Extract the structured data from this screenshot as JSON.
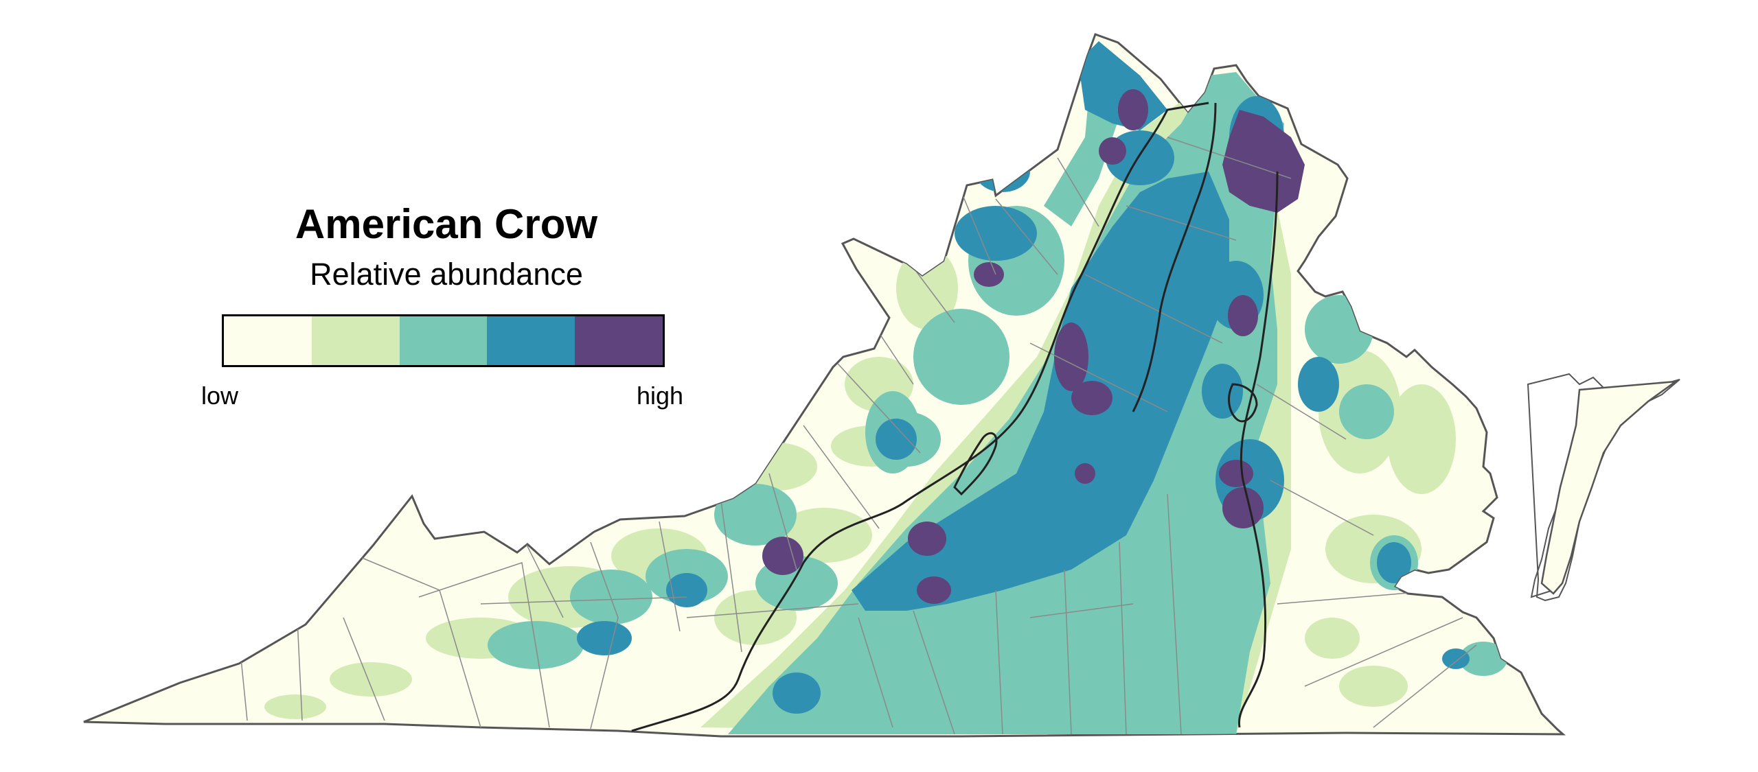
{
  "legend": {
    "title": "American Crow",
    "subtitle": "Relative abundance",
    "low_label": "low",
    "high_label": "high",
    "classes": [
      {
        "level": 1,
        "color": "#fdfeec"
      },
      {
        "level": 2,
        "color": "#d4ebb6"
      },
      {
        "level": 3,
        "color": "#77c8b4"
      },
      {
        "level": 4,
        "color": "#2f90b2"
      },
      {
        "level": 5,
        "color": "#5f437c"
      }
    ]
  },
  "map": {
    "region": "Virginia",
    "base_color": "#fdfeec",
    "outline_color": "#555555",
    "county_line_color": "#8a8a8a",
    "province_line_color": "#222222"
  }
}
